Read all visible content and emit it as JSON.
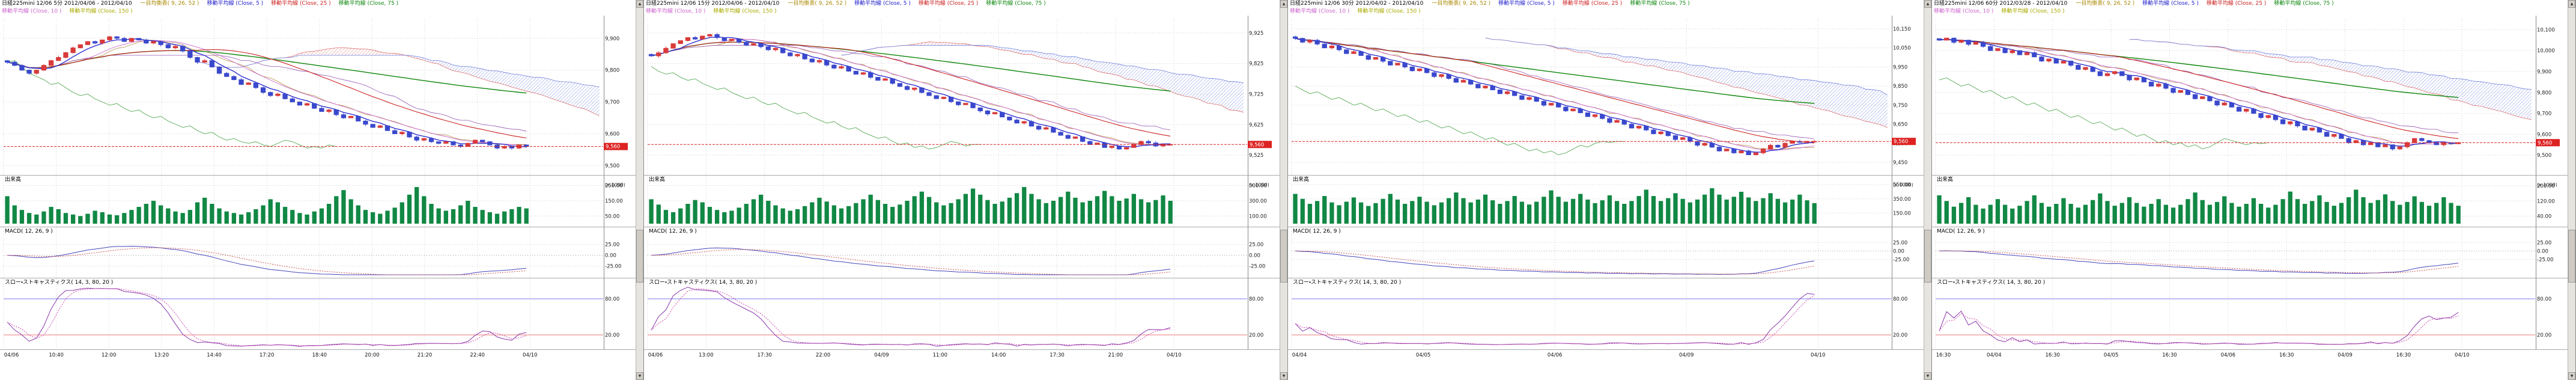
{
  "icons": {
    "scroll_up": "▲",
    "scroll_down": "▼"
  },
  "sections": {
    "volume_label": "出来高",
    "volume_unit": "(x 1000)",
    "macd_label": "MACD( 12, 26, 9 )",
    "stoch_label": "スロー・ストキャスティクス( 14, 3, 80, 20 )"
  },
  "colors": {
    "up": "#d93a3a",
    "down": "#3a48cc",
    "ma5": "#2222cc",
    "ma10": "#cc66cc",
    "ma25": "#cc2222",
    "ma75": "#118811",
    "ma150": "#c8c822",
    "cloud_up": "#dd7070",
    "cloud_down": "#7080dd",
    "tenkan": "#aa8833",
    "kijun": "#8844aa",
    "chikou": "#55aa55",
    "volume": "#118844",
    "macd": "#4444bb",
    "signal": "#cc5555",
    "stoch_k": "#8833aa",
    "stoch_d": "#cc44aa",
    "ref_high": "#7777ee",
    "ref_low": "#ee7777",
    "grid": "#cccccc",
    "axis_text": "#222222",
    "current": "#dd2222"
  },
  "chart_data": [
    {
      "type": "candlestick",
      "title": "日経225mini 12/06 5分 2012/04/06 - 2012/04/10",
      "legend_row1": [
        {
          "label": "一目均衡表( 9, 26, 52 )",
          "color": "#aa8800"
        },
        {
          "label": "移動平均線 (Close, 5 )",
          "color": "#2222cc"
        },
        {
          "label": "移動平均線 (Close, 25 )",
          "color": "#cc2222"
        },
        {
          "label": "移動平均線 (Close, 75 )",
          "color": "#118811"
        }
      ],
      "legend_row2": [
        {
          "label": "移動平均線 (Close, 10 )",
          "color": "#cc66cc"
        },
        {
          "label": "移動平均線 (Close, 150 )",
          "color": "#aaaa00"
        }
      ],
      "price": {
        "ylim": [
          9480,
          9960
        ],
        "ticks": [
          [
            9900,
            "9,900"
          ],
          [
            9800,
            "9,800"
          ],
          [
            9700,
            "9,700"
          ],
          [
            9600,
            "9,600"
          ],
          [
            9500,
            "9,500"
          ]
        ],
        "current": [
          9560,
          "9,560"
        ],
        "closes": [
          9825,
          9815,
          9800,
          9790,
          9800,
          9815,
          9830,
          9840,
          9855,
          9870,
          9880,
          9890,
          9885,
          9895,
          9905,
          9900,
          9890,
          9900,
          9895,
          9885,
          9890,
          9880,
          9870,
          9875,
          9860,
          9840,
          9825,
          9830,
          9810,
          9790,
          9780,
          9770,
          9755,
          9760,
          9745,
          9730,
          9720,
          9725,
          9710,
          9700,
          9690,
          9695,
          9680,
          9670,
          9675,
          9660,
          9650,
          9655,
          9640,
          9630,
          9620,
          9625,
          9610,
          9600,
          9605,
          9590,
          9580,
          9585,
          9575,
          9570,
          9575,
          9565,
          9560,
          9570,
          9580,
          9575,
          9565,
          9555,
          9560,
          9555,
          9565,
          9560
        ]
      },
      "volume": {
        "max": 260,
        "ticks": [
          [
            250,
            "250.00"
          ],
          [
            150,
            "150.00"
          ],
          [
            50,
            "50.00"
          ]
        ],
        "values": [
          180,
          120,
          90,
          70,
          60,
          80,
          110,
          95,
          70,
          60,
          50,
          65,
          85,
          75,
          60,
          55,
          70,
          90,
          110,
          130,
          150,
          120,
          100,
          80,
          70,
          90,
          140,
          170,
          130,
          100,
          80,
          70,
          60,
          75,
          95,
          120,
          160,
          140,
          110,
          90,
          70,
          60,
          80,
          100,
          130,
          180,
          220,
          160,
          120,
          90,
          75,
          65,
          85,
          105,
          140,
          190,
          240,
          180,
          130,
          100,
          85,
          95,
          120,
          150,
          110,
          90,
          75,
          65,
          80,
          95,
          110,
          100
        ]
      },
      "macd": {
        "ylim": [
          -45,
          45
        ],
        "ticks": [
          [
            25,
            "25.00"
          ],
          [
            0,
            "0.00"
          ],
          [
            -25,
            "-25.00"
          ]
        ]
      },
      "stoch": {
        "ticks": [
          [
            80,
            "80.00"
          ],
          [
            20,
            "20.00"
          ]
        ]
      },
      "times": [
        "04/06",
        "10:40",
        "12:00",
        "13:20",
        "14:40",
        "17:20",
        "18:40",
        "20:00",
        "21:20",
        "22:40",
        "04/10"
      ]
    },
    {
      "type": "candlestick",
      "title": "日経225mini 12/06 15分 2012/04/06 - 2012/04/10",
      "legend_row1": [
        {
          "label": "一目均衡表( 9, 26, 52 )",
          "color": "#aa8800"
        },
        {
          "label": "移動平均線 (Close, 5 )",
          "color": "#2222cc"
        },
        {
          "label": "移動平均線 (Close, 25 )",
          "color": "#cc2222"
        },
        {
          "label": "移動平均線 (Close, 75 )",
          "color": "#118811"
        }
      ],
      "legend_row2": [
        {
          "label": "移動平均線 (Close, 10 )",
          "color": "#cc66cc"
        },
        {
          "label": "移動平均線 (Close, 150 )",
          "color": "#aaaa00"
        }
      ],
      "price": {
        "ylim": [
          9470,
          9970
        ],
        "ticks": [
          [
            9925,
            "9,925"
          ],
          [
            9825,
            "9,825"
          ],
          [
            9725,
            "9,725"
          ],
          [
            9625,
            "9,625"
          ],
          [
            9525,
            "9,525"
          ]
        ],
        "current": [
          9560,
          "9,560"
        ],
        "closes": [
          9850,
          9860,
          9875,
          9890,
          9900,
          9910,
          9905,
          9915,
          9920,
          9910,
          9900,
          9905,
          9895,
          9885,
          9890,
          9880,
          9870,
          9875,
          9860,
          9850,
          9855,
          9840,
          9830,
          9835,
          9820,
          9810,
          9815,
          9800,
          9790,
          9795,
          9780,
          9770,
          9775,
          9760,
          9750,
          9740,
          9745,
          9730,
          9720,
          9710,
          9715,
          9700,
          9690,
          9695,
          9680,
          9670,
          9660,
          9665,
          9650,
          9640,
          9630,
          9635,
          9620,
          9610,
          9615,
          9600,
          9590,
          9580,
          9585,
          9570,
          9560,
          9565,
          9550,
          9555,
          9545,
          9550,
          9560,
          9570,
          9565,
          9555,
          9560,
          9560
        ]
      },
      "volume": {
        "max": 520,
        "ticks": [
          [
            500,
            "500.00"
          ],
          [
            300,
            "300.00"
          ],
          [
            100,
            "100.00"
          ]
        ],
        "values": [
          320,
          250,
          180,
          150,
          200,
          260,
          310,
          280,
          220,
          180,
          150,
          170,
          210,
          260,
          320,
          380,
          300,
          240,
          200,
          170,
          190,
          230,
          280,
          340,
          290,
          240,
          200,
          230,
          270,
          320,
          380,
          310,
          260,
          220,
          250,
          300,
          360,
          420,
          350,
          280,
          240,
          270,
          320,
          390,
          460,
          380,
          310,
          260,
          290,
          340,
          400,
          480,
          390,
          320,
          270,
          300,
          350,
          420,
          340,
          280,
          300,
          360,
          430,
          360,
          300,
          330,
          390,
          320,
          280,
          310,
          370,
          300
        ]
      },
      "macd": {
        "ylim": [
          -45,
          45
        ],
        "ticks": [
          [
            25,
            "25.00"
          ],
          [
            0,
            "0.00"
          ],
          [
            -25,
            "-25.00"
          ]
        ]
      },
      "stoch": {
        "ticks": [
          [
            80,
            "80.00"
          ],
          [
            20,
            "20.00"
          ]
        ]
      },
      "times": [
        "04/06",
        "13:00",
        "17:30",
        "22:00",
        "04/09",
        "11:00",
        "14:00",
        "17:30",
        "21:00",
        "04/10"
      ]
    },
    {
      "type": "candlestick",
      "title": "日経225mini 12/06 30分 2012/04/02 - 2012/04/10",
      "legend_row1": [
        {
          "label": "一目均衡表( 9, 26, 52 )",
          "color": "#aa8800"
        },
        {
          "label": "移動平均線 (Close, 5 )",
          "color": "#2222cc"
        },
        {
          "label": "移動平均線 (Close, 25 )",
          "color": "#cc2222"
        },
        {
          "label": "移動平均線 (Close, 75 )",
          "color": "#118811"
        }
      ],
      "legend_row2": [
        {
          "label": "移動平均線 (Close, 10 )",
          "color": "#cc66cc"
        },
        {
          "label": "移動平均線 (Close, 150 )",
          "color": "#aaaa00"
        }
      ],
      "price": {
        "ylim": [
          9400,
          10200
        ],
        "ticks": [
          [
            10150,
            "10,150"
          ],
          [
            10050,
            "10,050"
          ],
          [
            9950,
            "9,950"
          ],
          [
            9850,
            "9,850"
          ],
          [
            9750,
            "9,750"
          ],
          [
            9650,
            "9,650"
          ],
          [
            9550,
            "9,550"
          ],
          [
            9450,
            "9,450"
          ]
        ],
        "current": [
          9560,
          "9,560"
        ],
        "closes": [
          10100,
          10080,
          10090,
          10070,
          10050,
          10060,
          10040,
          10020,
          10030,
          10010,
          9990,
          10000,
          9980,
          9960,
          9970,
          9950,
          9930,
          9940,
          9920,
          9900,
          9910,
          9890,
          9870,
          9880,
          9860,
          9840,
          9850,
          9830,
          9810,
          9820,
          9800,
          9780,
          9790,
          9770,
          9750,
          9760,
          9740,
          9720,
          9730,
          9710,
          9690,
          9700,
          9680,
          9660,
          9670,
          9650,
          9630,
          9640,
          9620,
          9600,
          9610,
          9590,
          9570,
          9580,
          9560,
          9540,
          9550,
          9530,
          9510,
          9520,
          9500,
          9510,
          9490,
          9500,
          9520,
          9540,
          9530,
          9550,
          9560,
          9555,
          9560,
          9560
        ]
      },
      "volume": {
        "max": 560,
        "ticks": [
          [
            550,
            "550.00"
          ],
          [
            350,
            "350.00"
          ],
          [
            150,
            "150.00"
          ]
        ],
        "values": [
          420,
          350,
          280,
          320,
          390,
          300,
          260,
          310,
          370,
          300,
          250,
          290,
          350,
          420,
          340,
          280,
          320,
          380,
          310,
          260,
          300,
          360,
          440,
          360,
          300,
          340,
          410,
          330,
          280,
          320,
          390,
          310,
          270,
          310,
          380,
          470,
          380,
          310,
          350,
          420,
          340,
          290,
          330,
          400,
          320,
          280,
          320,
          390,
          480,
          390,
          320,
          360,
          430,
          350,
          300,
          340,
          410,
          500,
          410,
          340,
          380,
          450,
          370,
          320,
          360,
          430,
          350,
          300,
          340,
          410,
          330,
          290
        ]
      },
      "macd": {
        "ylim": [
          -70,
          45
        ],
        "ticks": [
          [
            25,
            "25.00"
          ],
          [
            0,
            "0.00"
          ],
          [
            -25,
            "-25.00"
          ]
        ]
      },
      "stoch": {
        "ticks": [
          [
            80,
            "80.00"
          ],
          [
            20,
            "20.00"
          ]
        ]
      },
      "times": [
        "04/04",
        "04/05",
        "04/06",
        "04/09",
        "04/10"
      ]
    },
    {
      "type": "candlestick",
      "title": "日経225mini 12/06 60分 2012/03/28 - 2012/04/10",
      "legend_row1": [
        {
          "label": "一目均衡表( 9, 26, 52 )",
          "color": "#aa8800"
        },
        {
          "label": "移動平均線 (Close, 5 )",
          "color": "#2222cc"
        },
        {
          "label": "移動平均線 (Close, 25 )",
          "color": "#cc2222"
        },
        {
          "label": "移動平均線 (Close, 75 )",
          "color": "#118811"
        }
      ],
      "legend_row2": [
        {
          "label": "移動平均線 (Close, 10 )",
          "color": "#cc66cc"
        },
        {
          "label": "移動平均線 (Close, 150 )",
          "color": "#aaaa00"
        }
      ],
      "price": {
        "ylim": [
          9420,
          10150
        ],
        "ticks": [
          [
            10100,
            "10,100"
          ],
          [
            10000,
            "10,000"
          ],
          [
            9900,
            "9,900"
          ],
          [
            9800,
            "9,800"
          ],
          [
            9700,
            "9,700"
          ],
          [
            9600,
            "9,600"
          ],
          [
            9500,
            "9,500"
          ]
        ],
        "current": [
          9560,
          "9,560"
        ],
        "closes": [
          10050,
          10060,
          10040,
          10050,
          10030,
          10040,
          10020,
          10000,
          10010,
          9990,
          10000,
          9980,
          9990,
          9970,
          9950,
          9960,
          9940,
          9950,
          9930,
          9910,
          9920,
          9900,
          9880,
          9890,
          9900,
          9880,
          9860,
          9870,
          9850,
          9830,
          9840,
          9820,
          9800,
          9810,
          9790,
          9770,
          9780,
          9760,
          9740,
          9750,
          9730,
          9710,
          9720,
          9700,
          9680,
          9690,
          9670,
          9650,
          9660,
          9640,
          9620,
          9630,
          9610,
          9590,
          9600,
          9580,
          9560,
          9570,
          9550,
          9560,
          9540,
          9550,
          9530,
          9540,
          9560,
          9580,
          9570,
          9560,
          9550,
          9560,
          9555,
          9560
        ]
      },
      "volume": {
        "max": 210,
        "ticks": [
          [
            200,
            "200.00"
          ],
          [
            120,
            "120.00"
          ],
          [
            40,
            "40.00"
          ]
        ],
        "values": [
          150,
          120,
          90,
          110,
          140,
          100,
          80,
          100,
          130,
          100,
          80,
          95,
          120,
          150,
          110,
          90,
          105,
          135,
          105,
          85,
          100,
          125,
          160,
          120,
          95,
          110,
          140,
          110,
          90,
          105,
          130,
          100,
          85,
          100,
          130,
          165,
          125,
          100,
          115,
          145,
          110,
          90,
          105,
          135,
          105,
          85,
          100,
          130,
          170,
          130,
          105,
          120,
          150,
          115,
          95,
          110,
          140,
          180,
          140,
          110,
          125,
          155,
          120,
          100,
          115,
          145,
          115,
          95,
          110,
          140,
          110,
          95
        ]
      },
      "macd": {
        "ylim": [
          -70,
          45
        ],
        "ticks": [
          [
            25,
            "25.00"
          ],
          [
            0,
            "0.00"
          ],
          [
            -25,
            "-25.00"
          ]
        ]
      },
      "stoch": {
        "ticks": [
          [
            80,
            "80.00"
          ],
          [
            20,
            "20.00"
          ]
        ]
      },
      "times": [
        "16:30",
        "04/04",
        "16:30",
        "04/05",
        "16:30",
        "04/06",
        "16:30",
        "04/09",
        "16:30",
        "04/10"
      ]
    }
  ]
}
